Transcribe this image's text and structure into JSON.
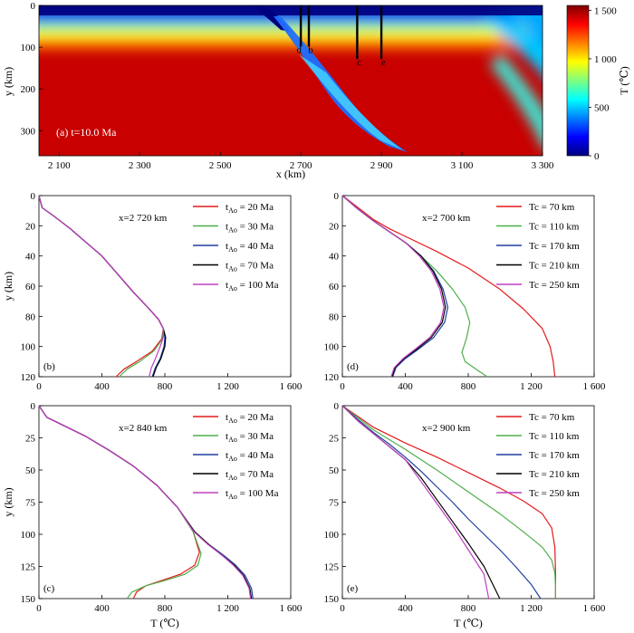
{
  "heatmap": {
    "panel_label": "(a) t=10.0 Ma",
    "xlabel": "x (km)",
    "ylabel": "y (km)",
    "xlim": [
      2050,
      3300
    ],
    "ylim": [
      0,
      360
    ],
    "xticks": [
      "2 100",
      "2 300",
      "2 500",
      "2 700",
      "2 900",
      "3 100",
      "3 300"
    ],
    "xtick_values": [
      2100,
      2300,
      2500,
      2700,
      2900,
      3100,
      3300
    ],
    "yticks": [
      "0",
      "100",
      "200",
      "300"
    ],
    "ytick_values": [
      0,
      100,
      200,
      300
    ],
    "colorbar": {
      "label": "T (℃)",
      "ticks": [
        "1 500",
        "1 000",
        "500",
        "0"
      ],
      "tick_values": [
        1500,
        1000,
        500,
        0
      ],
      "range": [
        0,
        1550
      ]
    },
    "colormap": [
      "#00007f",
      "#0000ff",
      "#007fff",
      "#00ffff",
      "#7fff7f",
      "#ffff00",
      "#ff7f00",
      "#ff0000",
      "#7f0000"
    ],
    "profiles": [
      {
        "letter": "d",
        "x": 2700,
        "y_end": 120
      },
      {
        "letter": "b",
        "x": 2720,
        "y_end": 120
      },
      {
        "letter": "c",
        "x": 2840,
        "y_end": 150
      },
      {
        "letter": "e",
        "x": 2900,
        "y_end": 150
      }
    ]
  },
  "chart_data": [
    {
      "type": "line",
      "panel_label": "(b)",
      "annotation": "x=2 720 km",
      "ylabel": "y (km)",
      "xlim": [
        0,
        1600
      ],
      "ylim": [
        0,
        120
      ],
      "xticks": [
        "0",
        "400",
        "800",
        "1 200",
        "1 600"
      ],
      "xtick_values": [
        0,
        400,
        800,
        1200,
        1600
      ],
      "yticks": [
        "0",
        "20",
        "40",
        "60",
        "80",
        "100",
        "120"
      ],
      "ytick_values": [
        0,
        20,
        40,
        60,
        80,
        100,
        120
      ],
      "legend_position": "top-right",
      "series": [
        {
          "name": "t",
          "sub": "Ao",
          "suffix": " = 20 Ma",
          "color": "#e41a1c",
          "x": [
            0,
            20,
            100,
            200,
            300,
            400,
            500,
            600,
            700,
            760,
            790,
            780,
            720,
            620,
            540,
            490
          ],
          "y": [
            0,
            8,
            14,
            22,
            31,
            40,
            52,
            64,
            75,
            82,
            88,
            95,
            103,
            110,
            115,
            120
          ]
        },
        {
          "name": "t",
          "sub": "Ao",
          "suffix": " = 30 Ma",
          "color": "#4daf4a",
          "x": [
            0,
            20,
            100,
            200,
            300,
            400,
            500,
            600,
            700,
            760,
            790,
            785,
            730,
            640,
            560,
            510
          ],
          "y": [
            0,
            8,
            14,
            22,
            31,
            40,
            52,
            64,
            75,
            82,
            88,
            95,
            103,
            110,
            115,
            120
          ]
        },
        {
          "name": "t",
          "sub": "Ao",
          "suffix": " = 40 Ma",
          "color": "#1f3f9f",
          "x": [
            0,
            20,
            100,
            200,
            300,
            400,
            500,
            600,
            700,
            760,
            790,
            800,
            795,
            770,
            740,
            720
          ],
          "y": [
            0,
            8,
            14,
            22,
            31,
            40,
            52,
            64,
            75,
            82,
            88,
            94,
            100,
            108,
            114,
            120
          ]
        },
        {
          "name": "t",
          "sub": "Ao",
          "suffix": " = 70 Ma",
          "color": "#000000",
          "x": [
            0,
            20,
            100,
            200,
            300,
            400,
            500,
            600,
            700,
            760,
            790,
            805,
            800,
            775,
            745,
            725
          ],
          "y": [
            0,
            8,
            14,
            22,
            31,
            40,
            52,
            64,
            75,
            82,
            88,
            94,
            100,
            108,
            114,
            120
          ]
        },
        {
          "name": "t",
          "sub": "Ao",
          "suffix": " = 100 Ma",
          "color": "#c040c0",
          "x": [
            0,
            20,
            100,
            200,
            300,
            400,
            500,
            600,
            700,
            760,
            790,
            790,
            770,
            740,
            715,
            700
          ],
          "y": [
            0,
            8,
            14,
            22,
            31,
            40,
            52,
            64,
            75,
            82,
            88,
            94,
            100,
            108,
            114,
            120
          ]
        }
      ]
    },
    {
      "type": "line",
      "panel_label": "(d)",
      "annotation": "x=2 700 km",
      "xlim": [
        0,
        1600
      ],
      "ylim": [
        0,
        120
      ],
      "xticks": [
        "0",
        "400",
        "800",
        "1 200",
        "1 600"
      ],
      "xtick_values": [
        0,
        400,
        800,
        1200,
        1600
      ],
      "yticks": [
        "0",
        "20",
        "40",
        "60",
        "80",
        "100",
        "120"
      ],
      "ytick_values": [
        0,
        20,
        40,
        60,
        80,
        100,
        120
      ],
      "legend_position": "top-right",
      "series": [
        {
          "name": "Tc = 70 km",
          "color": "#e41a1c",
          "x": [
            0,
            100,
            200,
            300,
            400,
            600,
            800,
            1000,
            1150,
            1270,
            1320,
            1340,
            1350
          ],
          "y": [
            0,
            8,
            16,
            22,
            27,
            37,
            48,
            62,
            75,
            88,
            100,
            110,
            120
          ]
        },
        {
          "name": "Tc = 110 km",
          "color": "#4daf4a",
          "x": [
            0,
            100,
            200,
            300,
            400,
            500,
            600,
            700,
            780,
            810,
            790,
            760,
            780,
            850,
            920
          ],
          "y": [
            0,
            9,
            17,
            24,
            31,
            40,
            50,
            62,
            74,
            84,
            94,
            104,
            110,
            115,
            120
          ]
        },
        {
          "name": "Tc = 170 km",
          "color": "#1f3f9f",
          "x": [
            0,
            100,
            200,
            300,
            400,
            500,
            580,
            640,
            670,
            650,
            580,
            480,
            400,
            340,
            320
          ],
          "y": [
            0,
            9,
            17,
            24,
            31,
            40,
            50,
            62,
            74,
            84,
            94,
            102,
            108,
            114,
            120
          ]
        },
        {
          "name": "Tc = 210 km",
          "color": "#000000",
          "x": [
            0,
            100,
            200,
            300,
            400,
            500,
            575,
            630,
            655,
            635,
            565,
            470,
            390,
            335,
            315
          ],
          "y": [
            0,
            9,
            17,
            24,
            31,
            40,
            50,
            62,
            74,
            84,
            94,
            102,
            108,
            114,
            120
          ]
        },
        {
          "name": "Tc = 250 km",
          "color": "#c040c0",
          "x": [
            0,
            100,
            200,
            300,
            400,
            490,
            565,
            620,
            645,
            625,
            555,
            460,
            385,
            330,
            310
          ],
          "y": [
            0,
            9,
            17,
            24,
            31,
            40,
            50,
            62,
            74,
            84,
            94,
            102,
            108,
            114,
            120
          ]
        }
      ]
    },
    {
      "type": "line",
      "panel_label": "(c)",
      "annotation": "x=2 840 km",
      "xlabel": "T (℃)",
      "ylabel": "y (km)",
      "xlim": [
        0,
        1600
      ],
      "ylim": [
        0,
        150
      ],
      "xticks": [
        "0",
        "400",
        "800",
        "1 200",
        "1 600"
      ],
      "xtick_values": [
        0,
        400,
        800,
        1200,
        1600
      ],
      "yticks": [
        "0",
        "25",
        "50",
        "75",
        "100",
        "125",
        "150"
      ],
      "ytick_values": [
        0,
        25,
        50,
        75,
        100,
        125,
        150
      ],
      "legend_position": "top-right",
      "series": [
        {
          "name": "t",
          "sub": "Ao",
          "suffix": " = 20 Ma",
          "color": "#e41a1c",
          "x": [
            0,
            50,
            150,
            300,
            450,
            600,
            750,
            880,
            980,
            1020,
            990,
            900,
            780,
            680,
            620,
            600
          ],
          "y": [
            0,
            9,
            15,
            24,
            35,
            47,
            62,
            79,
            98,
            114,
            124,
            131,
            136,
            140,
            145,
            150
          ]
        },
        {
          "name": "t",
          "sub": "Ao",
          "suffix": " = 30 Ma",
          "color": "#4daf4a",
          "x": [
            0,
            50,
            150,
            300,
            450,
            600,
            750,
            880,
            980,
            1030,
            1010,
            930,
            800,
            680,
            590,
            560
          ],
          "y": [
            0,
            9,
            15,
            24,
            35,
            47,
            62,
            79,
            98,
            115,
            124,
            131,
            136,
            140,
            145,
            150
          ]
        },
        {
          "name": "t",
          "sub": "Ao",
          "suffix": " = 40 Ma",
          "color": "#1f3f9f",
          "x": [
            0,
            50,
            150,
            300,
            450,
            600,
            750,
            880,
            990,
            1080,
            1170,
            1250,
            1310,
            1350,
            1360
          ],
          "y": [
            0,
            9,
            15,
            24,
            35,
            47,
            62,
            79,
            98,
            108,
            116,
            124,
            132,
            142,
            150
          ]
        },
        {
          "name": "t",
          "sub": "Ao",
          "suffix": " = 70 Ma",
          "color": "#000000",
          "x": [
            0,
            50,
            150,
            300,
            450,
            600,
            750,
            880,
            990,
            1080,
            1160,
            1240,
            1300,
            1340,
            1350
          ],
          "y": [
            0,
            9,
            15,
            24,
            35,
            47,
            62,
            79,
            98,
            108,
            116,
            124,
            132,
            142,
            150
          ]
        },
        {
          "name": "t",
          "sub": "Ao",
          "suffix": " = 100 Ma",
          "color": "#c040c0",
          "x": [
            0,
            50,
            150,
            300,
            450,
            600,
            750,
            880,
            985,
            1075,
            1160,
            1235,
            1295,
            1335,
            1345
          ],
          "y": [
            0,
            9,
            15,
            24,
            35,
            47,
            62,
            79,
            98,
            108,
            116,
            124,
            132,
            142,
            150
          ]
        }
      ]
    },
    {
      "type": "line",
      "panel_label": "(e)",
      "annotation": "x=2 900 km",
      "xlabel": "T (℃)",
      "xlim": [
        0,
        1600
      ],
      "ylim": [
        0,
        150
      ],
      "xticks": [
        "0",
        "400",
        "800",
        "1 200",
        "1 600"
      ],
      "xtick_values": [
        0,
        400,
        800,
        1200,
        1600
      ],
      "yticks": [
        "0",
        "25",
        "50",
        "75",
        "100",
        "125",
        "150"
      ],
      "ytick_values": [
        0,
        25,
        50,
        75,
        100,
        125,
        150
      ],
      "legend_position": "top-right",
      "series": [
        {
          "name": "Tc = 70 km",
          "color": "#e41a1c",
          "x": [
            0,
            200,
            400,
            600,
            800,
            1000,
            1150,
            1270,
            1330,
            1350,
            1355,
            1355
          ],
          "y": [
            0,
            17,
            29,
            40,
            52,
            64,
            74,
            84,
            95,
            110,
            130,
            150
          ]
        },
        {
          "name": "Tc = 110 km",
          "color": "#4daf4a",
          "x": [
            0,
            200,
            400,
            600,
            800,
            1000,
            1150,
            1270,
            1330,
            1350,
            1355,
            1355
          ],
          "y": [
            0,
            19,
            34,
            50,
            67,
            84,
            98,
            110,
            120,
            130,
            140,
            150
          ]
        },
        {
          "name": "Tc = 170 km",
          "color": "#1f3f9f",
          "x": [
            0,
            100,
            200,
            300,
            400,
            500,
            600,
            700,
            800,
            900,
            1000,
            1100,
            1200,
            1260
          ],
          "y": [
            0,
            11,
            21,
            30,
            40,
            51,
            63,
            75,
            88,
            100,
            112,
            125,
            139,
            150
          ]
        },
        {
          "name": "Tc = 210 km",
          "color": "#000000",
          "x": [
            0,
            100,
            200,
            300,
            400,
            500,
            600,
            700,
            800,
            900,
            1000
          ],
          "y": [
            0,
            12,
            22,
            32,
            42,
            56,
            73,
            90,
            107,
            125,
            150
          ]
        },
        {
          "name": "Tc = 250 km",
          "color": "#c040c0",
          "x": [
            0,
            100,
            200,
            300,
            400,
            500,
            600,
            700,
            800,
            900,
            930
          ],
          "y": [
            0,
            12,
            22,
            32,
            42,
            59,
            76,
            93,
            112,
            131,
            150
          ]
        }
      ]
    }
  ]
}
